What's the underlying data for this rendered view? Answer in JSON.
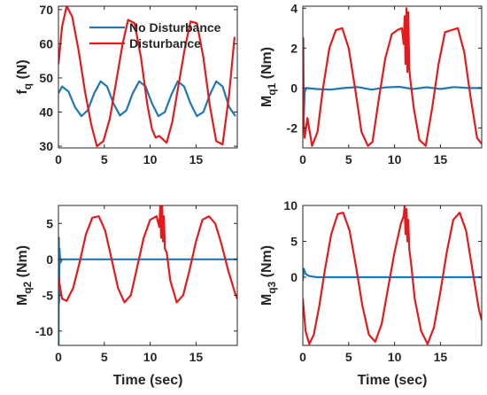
{
  "colors": {
    "no_disturbance": "#1f77b4",
    "disturbance": "#e41a1c"
  },
  "legend": {
    "no_disturbance": "No Disturbance",
    "disturbance": "Disturbance"
  },
  "chart_data": [
    {
      "id": "fq",
      "type": "line",
      "ylabel_main": "f",
      "ylabel_sub": "q",
      "ylabel_unit": " (N)",
      "xlabel": "",
      "xlim": [
        0,
        19.5
      ],
      "ylim": [
        29.5,
        71
      ],
      "xticks": [
        0,
        5,
        10,
        15
      ],
      "yticks": [
        30,
        40,
        50,
        60,
        70
      ],
      "legend": true,
      "series": [
        {
          "name": "No Disturbance",
          "color_key": "no_disturbance",
          "x": [
            0,
            0.4,
            1.1,
            1.8,
            2.5,
            3.2,
            3.9,
            4.6,
            5.3,
            6.0,
            6.7,
            7.4,
            8.1,
            8.8,
            9.5,
            10.2,
            10.9,
            11.6,
            12.3,
            13.0,
            13.7,
            14.4,
            15.1,
            15.8,
            16.5,
            17.2,
            17.9,
            18.6,
            19.3
          ],
          "y": [
            45.5,
            47.5,
            46,
            41.5,
            38.8,
            40.5,
            45.5,
            49,
            47.5,
            42.5,
            39,
            40.5,
            45.5,
            49,
            47.5,
            42.5,
            38.8,
            40,
            45,
            49,
            47.5,
            42.5,
            38.8,
            40,
            45,
            49,
            47.5,
            41.5,
            38.8
          ]
        },
        {
          "name": "Disturbance",
          "color_key": "disturbance",
          "x": [
            0,
            0.4,
            0.9,
            1.5,
            2.2,
            2.9,
            3.6,
            4.2,
            4.9,
            5.6,
            6.3,
            7.0,
            7.6,
            8.3,
            9.0,
            9.7,
            10.2,
            10.6,
            11.0,
            11.4,
            11.8,
            12.4,
            13.1,
            13.8,
            14.4,
            15.1,
            15.8,
            16.5,
            17.2,
            17.9,
            18.6,
            19.2
          ],
          "y": [
            54,
            65,
            71,
            68,
            58,
            46,
            36,
            30,
            31.5,
            38,
            49,
            60,
            67,
            66,
            56,
            42,
            35,
            32.5,
            33,
            32,
            31,
            37,
            48,
            59,
            66.5,
            66,
            56,
            42,
            31.5,
            30.5,
            45,
            62
          ]
        }
      ]
    },
    {
      "id": "mq1",
      "type": "line",
      "ylabel_main": "M",
      "ylabel_sub": "q1",
      "ylabel_unit": " (Nm)",
      "xlabel": "",
      "xlim": [
        0,
        19.5
      ],
      "ylim": [
        -3,
        4.1
      ],
      "xticks": [
        0,
        5,
        10,
        15
      ],
      "yticks": [
        -2,
        0,
        2,
        4
      ],
      "series": [
        {
          "name": "No Disturbance",
          "color_key": "no_disturbance",
          "x": [
            0,
            0.05,
            0.1,
            0.2,
            0.4,
            1.5,
            3,
            4.5,
            6,
            7.5,
            9,
            10.5,
            12,
            13.5,
            15,
            16.5,
            18,
            19.5
          ],
          "y": [
            -1.8,
            2.5,
            -1.5,
            -0.2,
            0,
            -0.05,
            -0.08,
            0,
            0.05,
            -0.08,
            0.03,
            0.06,
            -0.05,
            0.04,
            -0.05,
            0.05,
            0,
            0
          ]
        },
        {
          "name": "Disturbance",
          "color_key": "disturbance",
          "x": [
            0,
            0.1,
            0.2,
            0.5,
            1.0,
            1.6,
            2.2,
            2.9,
            3.6,
            4.3,
            5.0,
            5.7,
            6.4,
            7.1,
            7.6,
            8.3,
            9.0,
            9.7,
            10.3,
            10.8,
            11.0,
            11.1,
            11.2,
            11.3,
            11.4,
            11.5,
            11.6,
            11.7,
            12.1,
            12.7,
            13.4,
            14.1,
            14.8,
            15.5,
            16.2,
            16.9,
            17.6,
            18.3,
            19.0,
            19.5
          ],
          "y": [
            2.5,
            -1.8,
            -2.5,
            -1.5,
            -2.9,
            -2.2,
            0,
            2.0,
            2.9,
            3.0,
            2.0,
            0,
            -2.2,
            -2.9,
            -2.7,
            -0.5,
            1.5,
            2.7,
            2.9,
            3.0,
            2.2,
            3.6,
            1.2,
            4.0,
            0.8,
            3.8,
            1.0,
            0.5,
            -1.0,
            -2.6,
            -2.9,
            -1.0,
            1.2,
            2.8,
            2.9,
            3.0,
            1.8,
            -0.5,
            -2.5,
            -2.8
          ]
        }
      ]
    },
    {
      "id": "mq2",
      "type": "line",
      "ylabel_main": "M",
      "ylabel_sub": "q2",
      "ylabel_unit": " (Nm)",
      "xlabel": "Time (sec)",
      "xlim": [
        0,
        19.5
      ],
      "ylim": [
        -12,
        7.5
      ],
      "xticks": [
        0,
        5,
        10,
        15
      ],
      "yticks": [
        -10,
        -5,
        0,
        5
      ],
      "series": [
        {
          "name": "No Disturbance",
          "color_key": "no_disturbance",
          "x": [
            0,
            0.02,
            0.05,
            0.08,
            0.12,
            0.2,
            0.4,
            19.5
          ],
          "y": [
            -3,
            -12,
            3,
            -6,
            1.5,
            -0.5,
            0,
            0
          ]
        },
        {
          "name": "Disturbance",
          "color_key": "disturbance",
          "x": [
            0,
            0.4,
            0.9,
            1.6,
            2.3,
            3.0,
            3.7,
            4.4,
            5.1,
            5.8,
            6.5,
            7.2,
            7.9,
            8.6,
            9.3,
            10.0,
            10.7,
            11.0,
            11.1,
            11.2,
            11.3,
            11.4,
            11.5,
            11.6,
            11.8,
            12.2,
            12.9,
            13.6,
            14.3,
            15.0,
            15.7,
            16.4,
            17.1,
            17.8,
            18.5,
            19.2,
            19.5
          ],
          "y": [
            -2.5,
            -5.5,
            -5.8,
            -4.0,
            -0.5,
            3.5,
            5.8,
            6.0,
            4.0,
            0,
            -4.0,
            -6.0,
            -5.0,
            -1.0,
            3.0,
            5.5,
            6.0,
            4.5,
            7.5,
            3.0,
            8.0,
            2.5,
            6.0,
            1.5,
            1.0,
            -3.0,
            -6.0,
            -5.0,
            -1.5,
            2.5,
            5.5,
            6.0,
            5.0,
            2.0,
            -1.5,
            -4.5,
            -5.5
          ]
        }
      ]
    },
    {
      "id": "mq3",
      "type": "line",
      "ylabel_main": "M",
      "ylabel_sub": "q3",
      "ylabel_unit": " (Nm)",
      "xlabel": "Time (sec)",
      "xlim": [
        0,
        19.5
      ],
      "ylim": [
        -9.5,
        10
      ],
      "xticks": [
        0,
        5,
        10,
        15
      ],
      "yticks": [
        0,
        5,
        10
      ],
      "series": [
        {
          "name": "No Disturbance",
          "color_key": "no_disturbance",
          "x": [
            0,
            0.1,
            0.3,
            0.6,
            1.0,
            1.5,
            19.5
          ],
          "y": [
            -0.5,
            1.2,
            0.5,
            0.2,
            0.1,
            0,
            0
          ]
        },
        {
          "name": "Disturbance",
          "color_key": "disturbance",
          "x": [
            0,
            0.3,
            0.7,
            1.2,
            1.8,
            2.4,
            3.1,
            3.8,
            4.4,
            5.1,
            5.8,
            6.5,
            7.2,
            7.9,
            8.6,
            9.3,
            10.0,
            10.7,
            11.0,
            11.1,
            11.2,
            11.3,
            11.4,
            11.5,
            11.6,
            11.8,
            12.2,
            12.9,
            13.6,
            14.3,
            15.0,
            15.7,
            16.4,
            17.1,
            17.8,
            18.5,
            19.2,
            19.5
          ],
          "y": [
            -3,
            -7.5,
            -9.3,
            -8.0,
            -4.0,
            1.0,
            6.0,
            8.8,
            9.0,
            6.5,
            1.5,
            -4.0,
            -8.0,
            -9.0,
            -6.5,
            -1.5,
            3.5,
            7.5,
            8.5,
            10.0,
            6.0,
            9.5,
            5.0,
            8.0,
            4.0,
            2.0,
            -3.0,
            -7.5,
            -9.3,
            -7.0,
            -2.0,
            3.5,
            8.0,
            9.0,
            6.5,
            1.0,
            -4.5,
            -6.0
          ]
        }
      ]
    }
  ]
}
